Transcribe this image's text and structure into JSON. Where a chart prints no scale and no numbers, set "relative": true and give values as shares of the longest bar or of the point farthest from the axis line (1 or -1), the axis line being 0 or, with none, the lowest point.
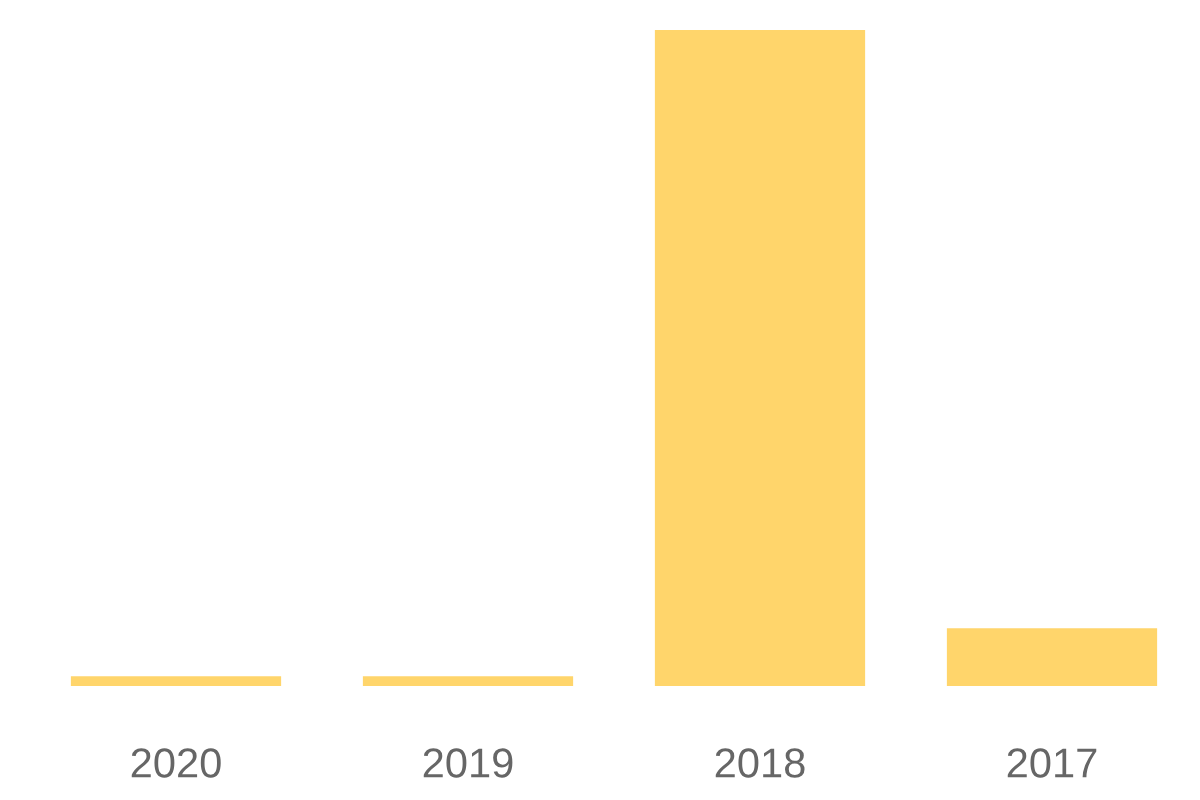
{
  "chart_data": {
    "type": "bar",
    "relative": true,
    "categories": [
      "2020",
      "2019",
      "2018",
      "2017"
    ],
    "values": [
      0.015,
      0.015,
      1,
      0.088
    ],
    "color": "#ffd56b"
  }
}
